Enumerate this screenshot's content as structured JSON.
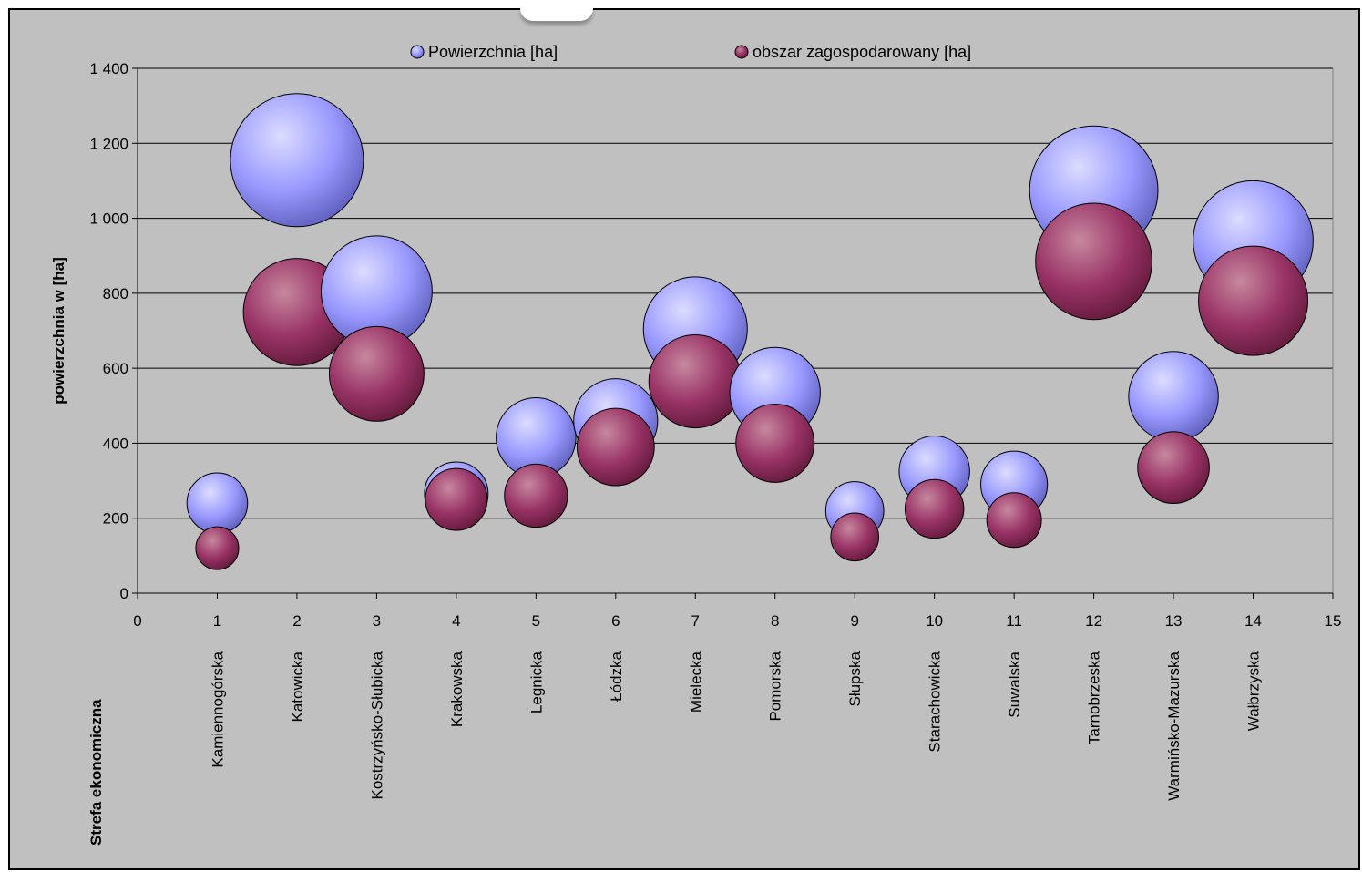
{
  "chart_data": {
    "type": "bubble",
    "ylabel": "powierzchnia w [ha]",
    "category_axis_title": "Strefa ekonomiczna",
    "ylim": [
      0,
      1400
    ],
    "yticks": [
      "0",
      "200",
      "400",
      "600",
      "800",
      "1 000",
      "1 200",
      "1 400"
    ],
    "ytick_values": [
      0,
      200,
      400,
      600,
      800,
      1000,
      1200,
      1400
    ],
    "xlim": [
      0,
      15
    ],
    "xticks": [
      "0",
      "1",
      "2",
      "3",
      "4",
      "5",
      "6",
      "7",
      "8",
      "9",
      "10",
      "11",
      "12",
      "13",
      "14",
      "15"
    ],
    "grid": "horizontal",
    "legend_position": "top",
    "categories": [
      "Kamiennogórska",
      "Katowicka",
      "Kostrzyńsko-Słubicka",
      "Krakowska",
      "Legnicka",
      "Łódzka",
      "Mielecka",
      "Pomorska",
      "Słupska",
      "Starachowicka",
      "Suwalska",
      "Tarnobrzeska",
      "Warmińsko-Mazurska",
      "Wałbrzyska"
    ],
    "x": [
      1,
      2,
      3,
      4,
      5,
      6,
      7,
      8,
      9,
      10,
      11,
      12,
      13,
      14
    ],
    "series": [
      {
        "name": "Powierzchnia [ha]",
        "color": "#9999ff",
        "values": [
          240,
          1155,
          805,
          265,
          415,
          460,
          705,
          535,
          220,
          325,
          290,
          1075,
          525,
          940
        ],
        "bubble_size": [
          240,
          1155,
          805,
          265,
          415,
          460,
          705,
          535,
          220,
          325,
          290,
          1075,
          525,
          940
        ]
      },
      {
        "name": "obszar zagospodarowany [ha]",
        "color": "#993366",
        "values": [
          120,
          750,
          585,
          250,
          260,
          390,
          565,
          400,
          150,
          225,
          195,
          885,
          335,
          780
        ],
        "bubble_size": [
          120,
          750,
          585,
          250,
          260,
          390,
          565,
          400,
          150,
          225,
          195,
          885,
          335,
          780
        ]
      }
    ]
  }
}
